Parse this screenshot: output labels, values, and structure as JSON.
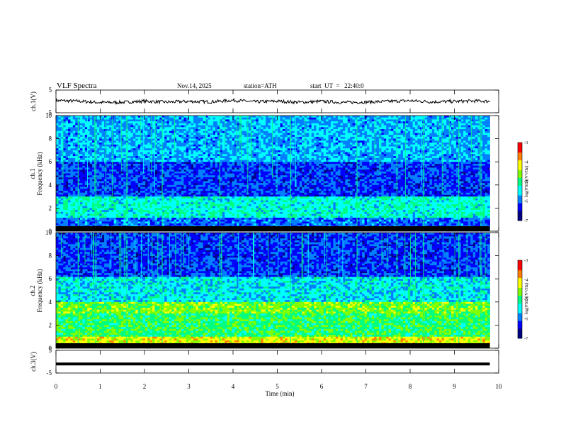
{
  "header": {
    "title": "VLF Spectra",
    "date": "Nov.14, 2025",
    "station": "station=ATH",
    "start": "start  UT  =   22:40:0"
  },
  "colors": {
    "colormap": [
      "#000080",
      "#0000ff",
      "#0080ff",
      "#00ffff",
      "#00ff80",
      "#80ff00",
      "#ffff00",
      "#ff8000",
      "#ff0000",
      "#ff8080",
      "#ffffff"
    ],
    "trace": "#000000"
  },
  "chart_data": [
    {
      "type": "line",
      "name": "ch1-waveform",
      "ylabel": "ch.1(V)",
      "ylim": [
        -5,
        5
      ],
      "yticks": [
        "5",
        "-5"
      ],
      "x": [
        0,
        0.5,
        1,
        1.5,
        2,
        2.5,
        3,
        3.5,
        4,
        4.5,
        5,
        5.5,
        6,
        6.5,
        7,
        7.5,
        8,
        8.5,
        9,
        9.5,
        9.8
      ],
      "values": [
        0.4,
        0.1,
        -0.5,
        -0.4,
        0.1,
        -0.3,
        0.0,
        -0.2,
        0.5,
        -0.2,
        0.1,
        -0.4,
        0.0,
        -0.5,
        -0.3,
        0.0,
        0.3,
        -0.2,
        0.0,
        0.2,
        0.0
      ]
    },
    {
      "type": "heatmap",
      "name": "ch1-spectrogram",
      "ylabel_top": "ch.1",
      "ylabel": "Frequency (kHz)",
      "ylim": [
        0,
        10
      ],
      "yticks": [
        "0",
        "2",
        "4",
        "6",
        "8",
        "10"
      ],
      "colorbar": {
        "label": "log(PSD)(V²/Hz)",
        "range": [
          -7,
          -3
        ],
        "ticks": [
          "-3",
          "-4",
          "-5",
          "-6",
          "-7"
        ]
      }
    },
    {
      "type": "heatmap",
      "name": "ch2-spectrogram",
      "ylabel_top": "ch.2",
      "ylabel": "Frequency (kHz)",
      "ylim": [
        0,
        10
      ],
      "yticks": [
        "0",
        "2",
        "4",
        "6",
        "8",
        "10"
      ],
      "colorbar": {
        "label": "log(PSD)(V²/Hz)",
        "range": [
          -7,
          -3
        ],
        "ticks": [
          "-3",
          "-4",
          "-5",
          "-6",
          "-7"
        ]
      }
    },
    {
      "type": "line",
      "name": "ch3-waveform",
      "ylabel": "ch.3(V)",
      "ylim": [
        -5,
        5
      ],
      "yticks": [
        "5",
        "-5"
      ],
      "x": [
        0,
        9.8
      ],
      "values": [
        -1.0,
        -1.0
      ]
    }
  ],
  "xaxis": {
    "label": "Time (min)",
    "range": [
      0,
      10
    ],
    "ticks": [
      "0",
      "1",
      "2",
      "3",
      "4",
      "5",
      "6",
      "7",
      "8",
      "9",
      "10"
    ]
  }
}
